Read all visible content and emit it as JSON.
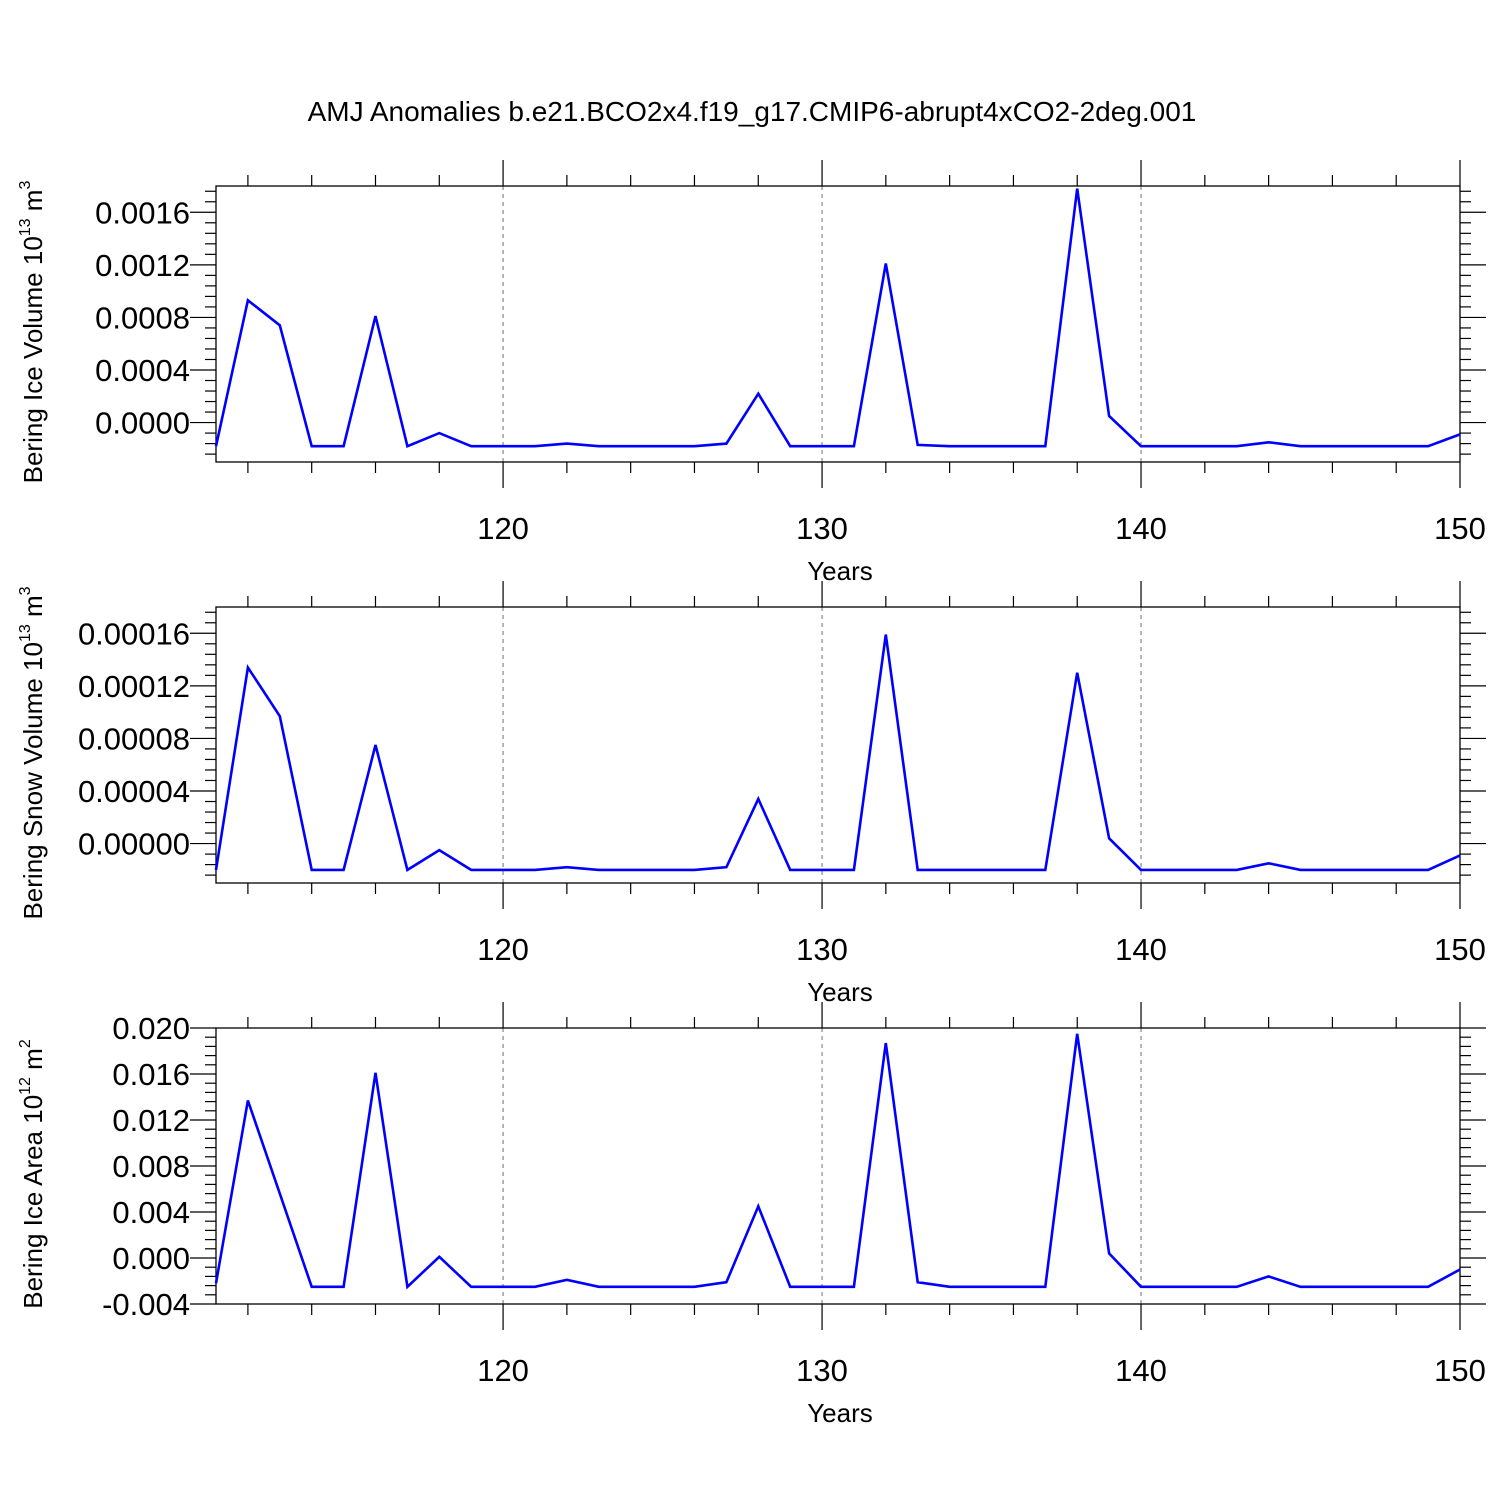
{
  "title": "AMJ Anomalies b.e21.BCO2x4.f19_g17.CMIP6-abrupt4xCO2-2deg.001",
  "series_color": "#0000ff",
  "chart_data": [
    {
      "type": "line",
      "ylabel": "Bering Ice Volume 10",
      "ylabel_exp": "13",
      "ylabel_unit": " m",
      "ylabel_unit_exp": "3",
      "xlabel": "Years",
      "xlim": [
        111,
        150
      ],
      "ylim": [
        -0.0003,
        0.0018
      ],
      "yticks": [
        0.0,
        0.0004,
        0.0008,
        0.0012,
        0.0016
      ],
      "ytick_labels": [
        "0.0000",
        "0.0004",
        "0.0008",
        "0.0012",
        "0.0016"
      ],
      "xticks": [
        120,
        130,
        140,
        150
      ],
      "xtick_labels": [
        "120",
        "130",
        "140",
        "150"
      ],
      "grid_x": [
        120,
        130,
        140
      ],
      "x": [
        111,
        112,
        113,
        114,
        115,
        116,
        117,
        118,
        119,
        120,
        121,
        122,
        123,
        124,
        125,
        126,
        127,
        128,
        129,
        130,
        131,
        132,
        133,
        134,
        135,
        136,
        137,
        138,
        139,
        140,
        141,
        142,
        143,
        144,
        145,
        146,
        147,
        148,
        149,
        150
      ],
      "values": [
        -0.00018,
        0.00093,
        0.00074,
        -0.00018,
        -0.00018,
        0.00081,
        -0.00018,
        -8e-05,
        -0.00018,
        -0.00018,
        -0.00018,
        -0.00016,
        -0.00018,
        -0.00018,
        -0.00018,
        -0.00018,
        -0.00016,
        0.00022,
        -0.00018,
        -0.00018,
        -0.00018,
        0.00121,
        -0.00017,
        -0.00018,
        -0.00018,
        -0.00018,
        -0.00018,
        0.00178,
        5e-05,
        -0.00018,
        -0.00018,
        -0.00018,
        -0.00018,
        -0.00015,
        -0.00018,
        -0.00018,
        -0.00018,
        -0.00018,
        -0.00018,
        -9e-05
      ]
    },
    {
      "type": "line",
      "ylabel": "Bering Snow Volume 10",
      "ylabel_exp": "13",
      "ylabel_unit": " m",
      "ylabel_unit_exp": "3",
      "xlabel": "Years",
      "xlim": [
        111,
        150
      ],
      "ylim": [
        -3e-05,
        0.00018
      ],
      "yticks": [
        0.0,
        4e-05,
        8e-05,
        0.00012,
        0.00016
      ],
      "ytick_labels": [
        "0.00000",
        "0.00004",
        "0.00008",
        "0.00012",
        "0.00016"
      ],
      "xticks": [
        120,
        130,
        140,
        150
      ],
      "xtick_labels": [
        "120",
        "130",
        "140",
        "150"
      ],
      "grid_x": [
        120,
        130,
        140
      ],
      "x": [
        111,
        112,
        113,
        114,
        115,
        116,
        117,
        118,
        119,
        120,
        121,
        122,
        123,
        124,
        125,
        126,
        127,
        128,
        129,
        130,
        131,
        132,
        133,
        134,
        135,
        136,
        137,
        138,
        139,
        140,
        141,
        142,
        143,
        144,
        145,
        146,
        147,
        148,
        149,
        150
      ],
      "values": [
        -2e-05,
        0.000134,
        9.7e-05,
        -2e-05,
        -2e-05,
        7.5e-05,
        -2e-05,
        -5e-06,
        -2e-05,
        -2e-05,
        -2e-05,
        -1.8e-05,
        -2e-05,
        -2e-05,
        -2e-05,
        -2e-05,
        -1.8e-05,
        3.4e-05,
        -2e-05,
        -2e-05,
        -2e-05,
        0.000159,
        -2e-05,
        -2e-05,
        -2e-05,
        -2e-05,
        -2e-05,
        0.00013,
        4e-06,
        -2e-05,
        -2e-05,
        -2e-05,
        -2e-05,
        -1.5e-05,
        -2e-05,
        -2e-05,
        -2e-05,
        -2e-05,
        -2e-05,
        -9e-06
      ]
    },
    {
      "type": "line",
      "ylabel": "Bering Ice Area 10",
      "ylabel_exp": "12",
      "ylabel_unit": " m",
      "ylabel_unit_exp": "2",
      "xlabel": "Years",
      "xlim": [
        111,
        150
      ],
      "ylim": [
        -0.004,
        0.02
      ],
      "yticks": [
        -0.004,
        0.0,
        0.004,
        0.008,
        0.012,
        0.016,
        0.02
      ],
      "ytick_labels": [
        "-0.004",
        "0.000",
        "0.004",
        "0.008",
        "0.012",
        "0.016",
        "0.020"
      ],
      "xticks": [
        120,
        130,
        140,
        150
      ],
      "xtick_labels": [
        "120",
        "130",
        "140",
        "150"
      ],
      "grid_x": [
        120,
        130,
        140
      ],
      "x": [
        111,
        112,
        113,
        114,
        115,
        116,
        117,
        118,
        119,
        120,
        121,
        122,
        123,
        124,
        125,
        126,
        127,
        128,
        129,
        130,
        131,
        132,
        133,
        134,
        135,
        136,
        137,
        138,
        139,
        140,
        141,
        142,
        143,
        144,
        145,
        146,
        147,
        148,
        149,
        150
      ],
      "values": [
        -0.0022,
        0.0137,
        0.0056,
        -0.0025,
        -0.0025,
        0.0161,
        -0.0025,
        0.0001,
        -0.0025,
        -0.0025,
        -0.0025,
        -0.0019,
        -0.0025,
        -0.0025,
        -0.0025,
        -0.0025,
        -0.0021,
        0.0045,
        -0.0025,
        -0.0025,
        -0.0025,
        0.0187,
        -0.0021,
        -0.0025,
        -0.0025,
        -0.0025,
        -0.0025,
        0.0195,
        0.0004,
        -0.0025,
        -0.0025,
        -0.0025,
        -0.0025,
        -0.0016,
        -0.0025,
        -0.0025,
        -0.0025,
        -0.0025,
        -0.0025,
        -0.001
      ]
    }
  ]
}
